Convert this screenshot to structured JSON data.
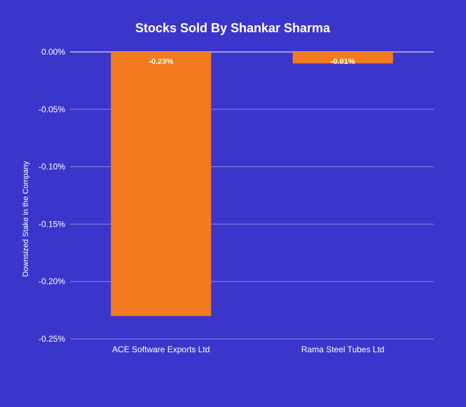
{
  "chart_data": {
    "type": "bar",
    "title": "Stocks Sold By Shankar Sharma",
    "xlabel": "",
    "ylabel": "Downsized Stake in the Company",
    "categories": [
      "ACE Software Exports Ltd",
      "Rama Steel Tubes Ltd"
    ],
    "values": [
      -0.23,
      -0.01
    ],
    "value_labels": [
      "-0.23%",
      "-0.01%"
    ],
    "ylim": [
      -0.25,
      0
    ],
    "yticks": [
      0,
      -0.05,
      -0.1,
      -0.15,
      -0.2,
      -0.25
    ],
    "ytick_labels": [
      "0.00%",
      "-0.05%",
      "-0.10%",
      "-0.15%",
      "-0.20%",
      "-0.25%"
    ],
    "grid": true,
    "colors": {
      "background": "#3a36cc",
      "bar": "#f47a1f",
      "grid": "#8a86e6",
      "text": "#ffffff"
    }
  }
}
